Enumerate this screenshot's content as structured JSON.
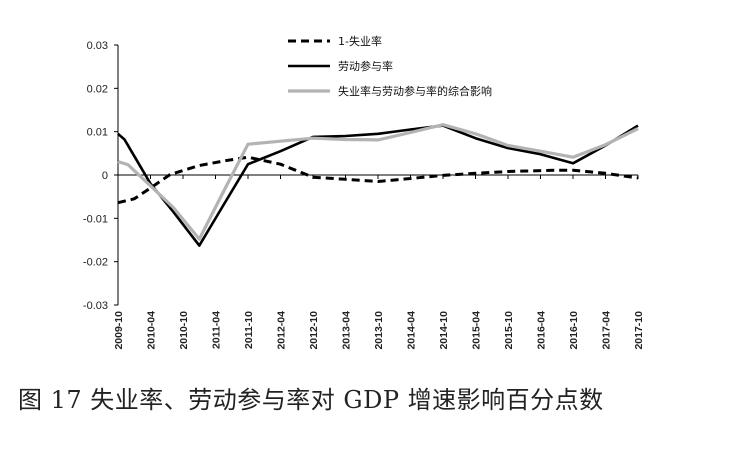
{
  "caption": "图 17  失业率、劳动参与率对 GDP 增速影响百分点数",
  "chart_data": {
    "type": "line",
    "categories": [
      "2009-10",
      "2010-04",
      "2010-10",
      "2011-04",
      "2011-10",
      "2012-04",
      "2012-10",
      "2013-04",
      "2013-10",
      "2014-04",
      "2014-10",
      "2015-04",
      "2015-10",
      "2016-04",
      "2016-10",
      "2017-04",
      "2017-10"
    ],
    "ylim": [
      -0.03,
      0.03
    ],
    "yticks": [
      "0.03",
      "0.02",
      "0.01",
      "0",
      "-0.01",
      "-0.02",
      "-0.03"
    ],
    "legend_position": "top-center",
    "series": [
      {
        "name": "1-失业率",
        "style": "dashed",
        "color": "#000000",
        "x": [
          0,
          0.5,
          1.0,
          1.6,
          2.5,
          3.3,
          4.0,
          5.0,
          6.0,
          7.0,
          8.0,
          9.0,
          10.0,
          11.0,
          12.0,
          13.5,
          14.0,
          15.0,
          16.0
        ],
        "values": [
          -0.0064,
          -0.0055,
          -0.003,
          0.0001,
          0.0022,
          0.0033,
          0.0041,
          0.0025,
          -0.0005,
          -0.001,
          -0.0015,
          -0.0008,
          -0.0001,
          0.0004,
          0.0008,
          0.0011,
          0.0011,
          0.0004,
          -0.0007
        ]
      },
      {
        "name": "劳动参与率",
        "style": "solid",
        "color": "#000000",
        "x": [
          0,
          0.2,
          1.0,
          1.7,
          2.5,
          3.2,
          4.0,
          5.0,
          6.0,
          7.0,
          8.0,
          9.0,
          10.0,
          11.0,
          12.0,
          13.0,
          14.0,
          15.0,
          16.0
        ],
        "values": [
          0.0095,
          0.0082,
          -0.002,
          -0.0085,
          -0.0163,
          -0.0075,
          0.0025,
          0.0055,
          0.0088,
          0.009,
          0.0095,
          0.0105,
          0.0114,
          0.0085,
          0.0062,
          0.0048,
          0.0027,
          0.0068,
          0.0114
        ]
      },
      {
        "name": "失业率与劳动参与率的综合影响",
        "style": "solid",
        "color": "#b3b3b3",
        "x": [
          0,
          0.3,
          1.0,
          1.7,
          2.5,
          3.2,
          4.0,
          5.0,
          6.0,
          7.0,
          8.0,
          9.0,
          10.0,
          11.0,
          12.0,
          13.0,
          14.0,
          15.0,
          16.0
        ],
        "values": [
          0.0031,
          0.0024,
          -0.0025,
          -0.0075,
          -0.0148,
          -0.0045,
          0.0071,
          0.0078,
          0.0085,
          0.0082,
          0.0081,
          0.0098,
          0.0116,
          0.0095,
          0.0068,
          0.0055,
          0.0041,
          0.007,
          0.0107
        ]
      }
    ]
  }
}
